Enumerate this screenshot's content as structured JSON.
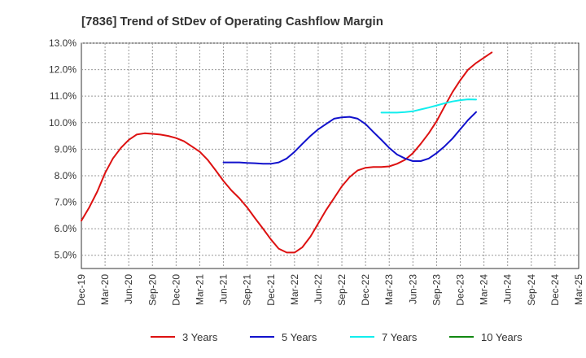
{
  "chart_data": {
    "type": "line",
    "title": "[7836]  Trend of StDev of Operating Cashflow Margin",
    "xlabel": "",
    "ylabel": "",
    "x_categories": [
      "Dec-19",
      "Mar-20",
      "Jun-20",
      "Sep-20",
      "Dec-20",
      "Mar-21",
      "Jun-21",
      "Sep-21",
      "Dec-21",
      "Mar-22",
      "Jun-22",
      "Sep-22",
      "Dec-22",
      "Mar-23",
      "Jun-23",
      "Sep-23",
      "Dec-23",
      "Mar-24",
      "Jun-24",
      "Sep-24",
      "Dec-24",
      "Mar-25"
    ],
    "y_ticks": [
      "5.0%",
      "6.0%",
      "7.0%",
      "8.0%",
      "9.0%",
      "10.0%",
      "11.0%",
      "12.0%",
      "13.0%"
    ],
    "ylim": [
      4.5,
      13.0
    ],
    "grid": true,
    "legend_position": "bottom",
    "series": [
      {
        "name": "3 Years",
        "color": "#dd1111",
        "points": [
          [
            0,
            6.3
          ],
          [
            0.33,
            6.8
          ],
          [
            0.67,
            7.4
          ],
          [
            1,
            8.1
          ],
          [
            1.33,
            8.65
          ],
          [
            1.67,
            9.05
          ],
          [
            2,
            9.35
          ],
          [
            2.33,
            9.55
          ],
          [
            2.67,
            9.6
          ],
          [
            3,
            9.58
          ],
          [
            3.33,
            9.55
          ],
          [
            3.67,
            9.5
          ],
          [
            4,
            9.42
          ],
          [
            4.33,
            9.3
          ],
          [
            4.67,
            9.1
          ],
          [
            5,
            8.9
          ],
          [
            5.33,
            8.6
          ],
          [
            5.67,
            8.2
          ],
          [
            6,
            7.8
          ],
          [
            6.33,
            7.45
          ],
          [
            6.67,
            7.15
          ],
          [
            7,
            6.8
          ],
          [
            7.33,
            6.4
          ],
          [
            7.67,
            6.0
          ],
          [
            8,
            5.6
          ],
          [
            8.33,
            5.25
          ],
          [
            8.67,
            5.1
          ],
          [
            9,
            5.1
          ],
          [
            9.33,
            5.3
          ],
          [
            9.67,
            5.7
          ],
          [
            10,
            6.2
          ],
          [
            10.33,
            6.7
          ],
          [
            10.67,
            7.15
          ],
          [
            11,
            7.6
          ],
          [
            11.33,
            7.95
          ],
          [
            11.67,
            8.2
          ],
          [
            12,
            8.3
          ],
          [
            12.33,
            8.33
          ],
          [
            12.67,
            8.33
          ],
          [
            13,
            8.35
          ],
          [
            13.33,
            8.45
          ],
          [
            13.67,
            8.6
          ],
          [
            14,
            8.85
          ],
          [
            14.33,
            9.2
          ],
          [
            14.67,
            9.6
          ],
          [
            15,
            10.05
          ],
          [
            15.33,
            10.6
          ],
          [
            15.67,
            11.15
          ],
          [
            16,
            11.6
          ],
          [
            16.33,
            12.0
          ],
          [
            16.67,
            12.25
          ],
          [
            17,
            12.45
          ],
          [
            17.33,
            12.65
          ]
        ]
      },
      {
        "name": "5 Years",
        "color": "#1111cc",
        "points": [
          [
            6,
            8.5
          ],
          [
            6.33,
            8.5
          ],
          [
            6.67,
            8.5
          ],
          [
            7,
            8.48
          ],
          [
            7.33,
            8.47
          ],
          [
            7.67,
            8.45
          ],
          [
            8,
            8.45
          ],
          [
            8.33,
            8.5
          ],
          [
            8.67,
            8.65
          ],
          [
            9,
            8.9
          ],
          [
            9.33,
            9.2
          ],
          [
            9.67,
            9.5
          ],
          [
            10,
            9.75
          ],
          [
            10.33,
            9.95
          ],
          [
            10.67,
            10.15
          ],
          [
            11,
            10.2
          ],
          [
            11.33,
            10.22
          ],
          [
            11.67,
            10.15
          ],
          [
            12,
            9.95
          ],
          [
            12.33,
            9.65
          ],
          [
            12.67,
            9.35
          ],
          [
            13,
            9.05
          ],
          [
            13.33,
            8.8
          ],
          [
            13.67,
            8.65
          ],
          [
            14,
            8.55
          ],
          [
            14.33,
            8.55
          ],
          [
            14.67,
            8.65
          ],
          [
            15,
            8.85
          ],
          [
            15.33,
            9.1
          ],
          [
            15.67,
            9.4
          ],
          [
            16,
            9.75
          ],
          [
            16.33,
            10.1
          ],
          [
            16.67,
            10.4
          ]
        ]
      },
      {
        "name": "7 Years",
        "color": "#11eeee",
        "points": [
          [
            12.67,
            10.38
          ],
          [
            13,
            10.38
          ],
          [
            13.33,
            10.38
          ],
          [
            13.67,
            10.4
          ],
          [
            14,
            10.43
          ],
          [
            14.33,
            10.5
          ],
          [
            14.67,
            10.57
          ],
          [
            15,
            10.65
          ],
          [
            15.33,
            10.73
          ],
          [
            15.67,
            10.8
          ],
          [
            16,
            10.85
          ],
          [
            16.33,
            10.88
          ],
          [
            16.67,
            10.87
          ]
        ]
      },
      {
        "name": "10 Years",
        "color": "#118811",
        "points": []
      }
    ]
  }
}
